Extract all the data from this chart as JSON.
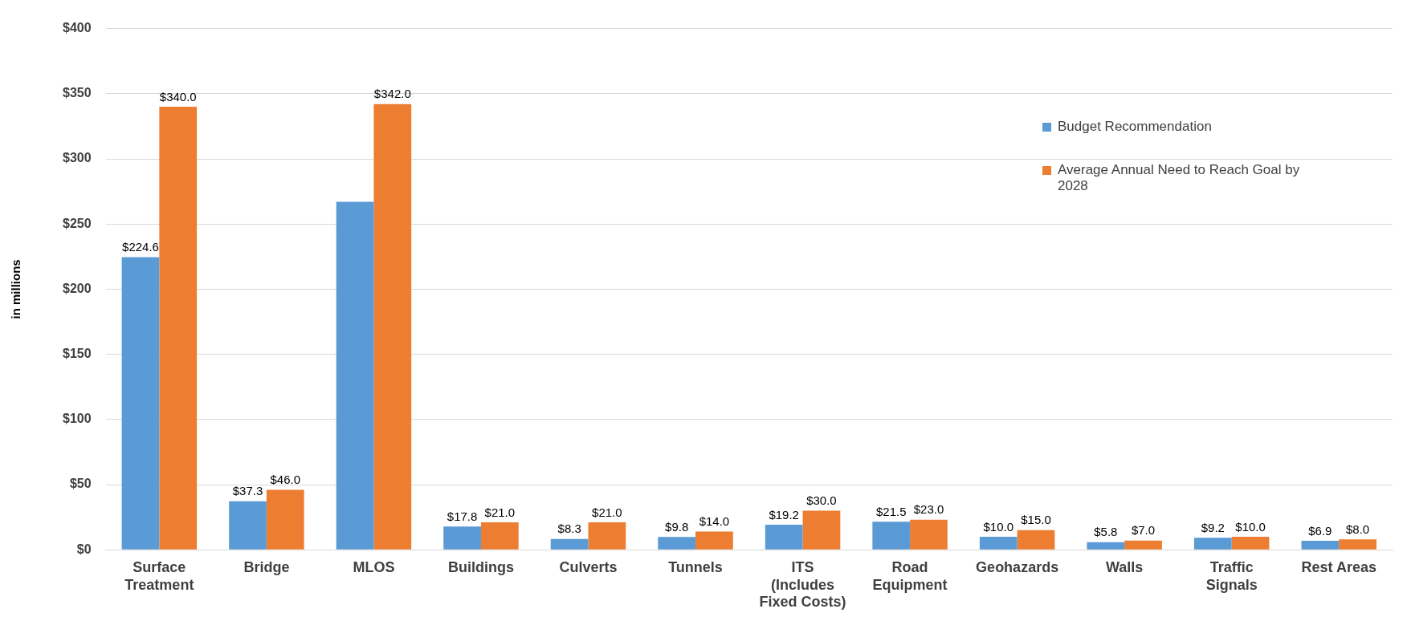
{
  "chart_data": {
    "type": "bar",
    "ylabel": "in millions",
    "categories": [
      "Surface Treatment",
      "Bridge",
      "MLOS",
      "Buildings",
      "Culverts",
      "Tunnels",
      "ITS (Includes Fixed Costs)",
      "Road Equipment",
      "Geohazards",
      "Walls",
      "Traffic Signals",
      "Rest Areas"
    ],
    "series": [
      {
        "name": "Budget Recommendation",
        "color": "#5b9bd5",
        "values": [
          224.6,
          37.3,
          267,
          17.8,
          8.3,
          9.8,
          19.2,
          21.5,
          10.0,
          5.8,
          9.2,
          6.9
        ],
        "value_labels": [
          "$224.6",
          "$37.3",
          null,
          "$17.8",
          "$8.3",
          "$9.8",
          "$19.2",
          "$21.5",
          "$10.0",
          "$5.8",
          "$9.2",
          "$6.9"
        ]
      },
      {
        "name": "Average Annual Need to Reach Goal by 2028",
        "color": "#ed7d31",
        "values": [
          340.0,
          46.0,
          342.0,
          21.0,
          21.0,
          14.0,
          30.0,
          23.0,
          15.0,
          7.0,
          10.0,
          8.0
        ],
        "value_labels": [
          "$340.0",
          "$46.0",
          "$342.0",
          "$21.0",
          "$21.0",
          "$14.0",
          "$30.0",
          "$23.0",
          "$15.0",
          "$7.0",
          "$10.0",
          "$8.0"
        ]
      }
    ],
    "ylim": [
      0,
      400
    ],
    "yticks": [
      {
        "value": 0,
        "label": "$0"
      },
      {
        "value": 50,
        "label": "$50"
      },
      {
        "value": 100,
        "label": "$100"
      },
      {
        "value": 150,
        "label": "$150"
      },
      {
        "value": 200,
        "label": "$200"
      },
      {
        "value": 250,
        "label": "$250"
      },
      {
        "value": 300,
        "label": "$300"
      },
      {
        "value": 350,
        "label": "$350"
      },
      {
        "value": 400,
        "label": "$400"
      }
    ],
    "grid": "y",
    "legend": "right"
  }
}
